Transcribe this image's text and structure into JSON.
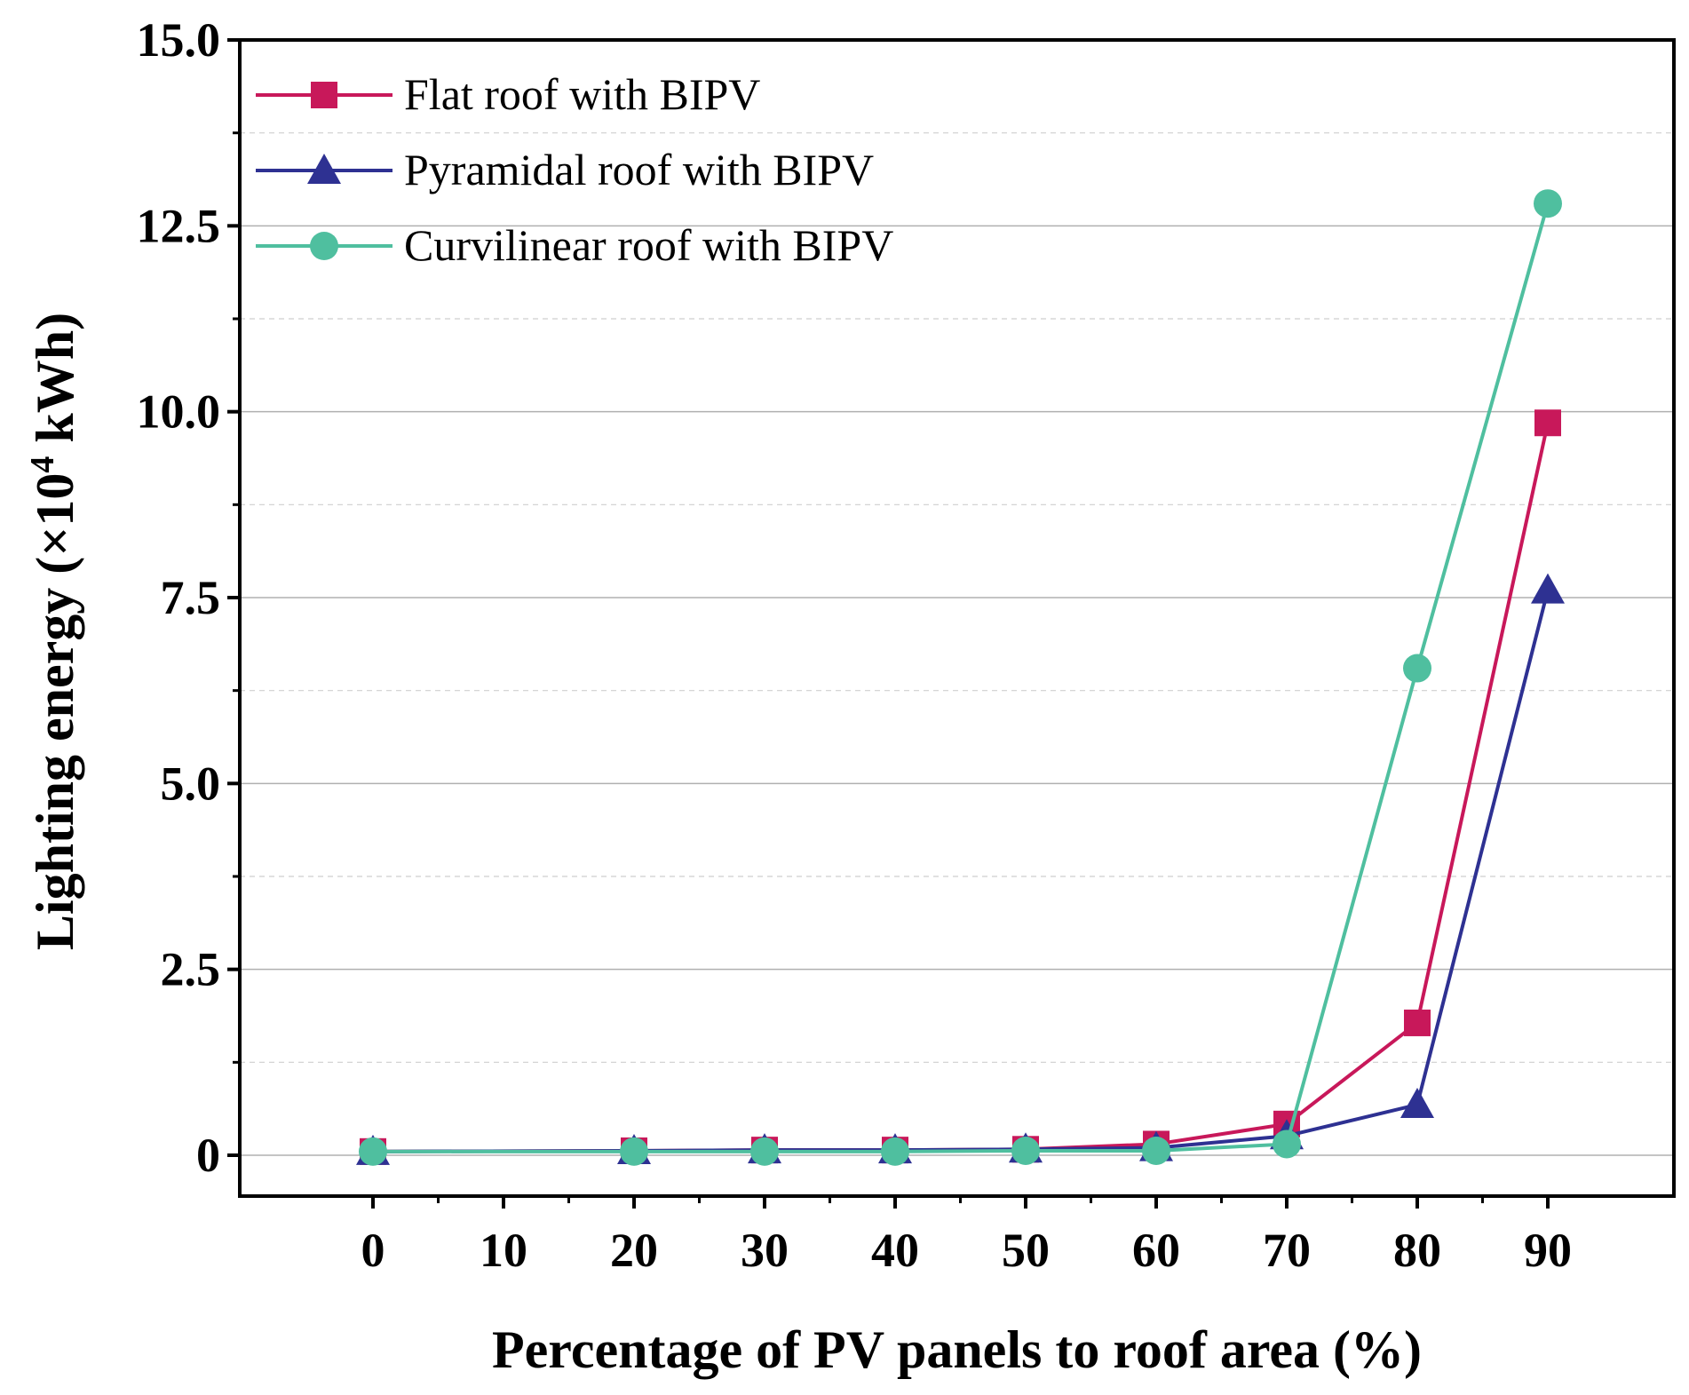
{
  "chart_data": {
    "type": "line",
    "title": "",
    "xlabel": "Percentage of PV panels to roof area (%)",
    "ylabel_main": "Lighting energy (×10",
    "ylabel_sup": "4",
    "ylabel_tail": " kWh)",
    "x_categories": [
      "0",
      "10",
      "20",
      "30",
      "40",
      "50",
      "60",
      "70",
      "80",
      "90"
    ],
    "y_tick_labels": [
      "0",
      "2.5",
      "5.0",
      "7.5",
      "10.0",
      "12.5",
      "15.0"
    ],
    "ylim": [
      0,
      15
    ],
    "grid": true,
    "legend_position": "top-left",
    "series": [
      {
        "name": "Flat roof with BIPV",
        "color": "#c8185a",
        "marker": "square",
        "x": [
          "0",
          "20",
          "30",
          "40",
          "50",
          "60",
          "70",
          "80",
          "90"
        ],
        "values": [
          0.05,
          0.06,
          0.07,
          0.07,
          0.08,
          0.15,
          0.42,
          1.78,
          9.85
        ]
      },
      {
        "name": "Pyramidal roof with BIPV",
        "color": "#2e3192",
        "marker": "triangle",
        "x": [
          "0",
          "20",
          "30",
          "40",
          "50",
          "60",
          "70",
          "80",
          "90"
        ],
        "values": [
          0.05,
          0.06,
          0.07,
          0.07,
          0.08,
          0.1,
          0.26,
          0.68,
          7.6
        ]
      },
      {
        "name": "Curvilinear roof with BIPV",
        "color": "#4fbf9f",
        "marker": "circle",
        "x": [
          "0",
          "20",
          "30",
          "40",
          "50",
          "60",
          "70",
          "80",
          "90"
        ],
        "values": [
          0.05,
          0.05,
          0.05,
          0.05,
          0.06,
          0.06,
          0.15,
          6.55,
          12.8
        ]
      }
    ]
  }
}
